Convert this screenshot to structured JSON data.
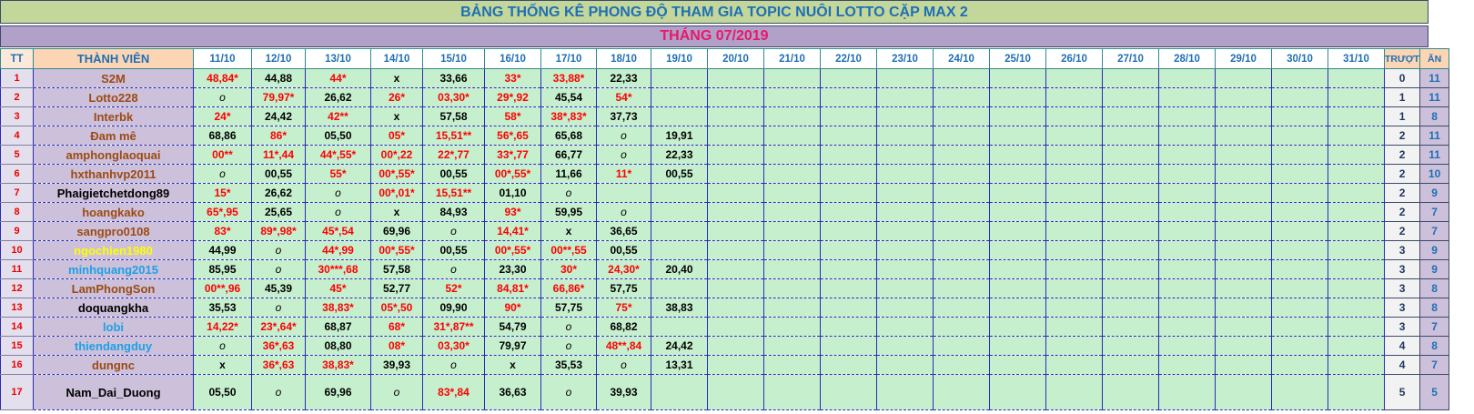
{
  "title": "BẢNG THỐNG KÊ PHONG ĐỘ  THAM GIA TOPIC NUÔI LOTTO CẶP MAX 2",
  "month": "THÁNG 07/2019",
  "headers": {
    "tt": "TT",
    "member": "THÀNH VIÊN",
    "miss": "TRƯỢT",
    "win": "ĂN",
    "dates": [
      "11/10",
      "12/10",
      "13/10",
      "14/10",
      "15/10",
      "16/10",
      "17/10",
      "18/10",
      "19/10",
      "20/10",
      "21/10",
      "22/10",
      "23/10",
      "24/10",
      "25/10",
      "26/10",
      "27/10",
      "28/10",
      "29/10",
      "30/10",
      "31/10"
    ]
  },
  "colors": {
    "brown": "#9c4a14",
    "black": "#000000",
    "yellow": "#ffff00",
    "blue": "#1ea0e6",
    "red": "#ff0000"
  },
  "rows": [
    {
      "tt": "1",
      "name": "S2M",
      "color": "brown",
      "cells": [
        "48,84*",
        "44,88",
        "44*",
        "x",
        "33,66",
        "33*",
        "33,88*",
        "22,33",
        ""
      ],
      "miss": "0",
      "win": "11"
    },
    {
      "tt": "2",
      "name": "Lotto228",
      "color": "brown",
      "cells": [
        "o",
        "79,97*",
        "26,62",
        "26*",
        "03,30*",
        "29*,92",
        "45,54",
        "54*",
        ""
      ],
      "miss": "1",
      "win": "11"
    },
    {
      "tt": "3",
      "name": "Interbk",
      "color": "brown",
      "cells": [
        "24*",
        "24,42",
        "42**",
        "x",
        "57,58",
        "58*",
        "38*,83*",
        "37,73",
        ""
      ],
      "miss": "1",
      "win": "8"
    },
    {
      "tt": "4",
      "name": "Đam mê",
      "color": "brown",
      "cells": [
        "68,86",
        "86*",
        "05,50",
        "05*",
        "15,51**",
        "56*,65",
        "65,68",
        "o",
        "19,91"
      ],
      "miss": "2",
      "win": "11"
    },
    {
      "tt": "5",
      "name": "amphonglaoquai",
      "color": "brown",
      "cells": [
        "00**",
        "11*,44",
        "44*,55*",
        "00*,22",
        "22*,77",
        "33*,77",
        "66,77",
        "o",
        "22,33"
      ],
      "miss": "2",
      "win": "11"
    },
    {
      "tt": "6",
      "name": "hxthanhvp2011",
      "color": "brown",
      "cells": [
        "o",
        "00,55",
        "55*",
        "00*,55*",
        "00,55",
        "00*,55*",
        "11,66",
        "11*",
        "00,55"
      ],
      "miss": "2",
      "win": "10"
    },
    {
      "tt": "7",
      "name": "Phaigietchetdong89",
      "color": "black",
      "cells": [
        "15*",
        "26,62",
        "o",
        "00*,01*",
        "15,51**",
        "01,10",
        "o",
        "",
        ""
      ],
      "miss": "2",
      "win": "9"
    },
    {
      "tt": "8",
      "name": "hoangkako",
      "color": "brown",
      "cells": [
        "65*,95",
        "25,65",
        "o",
        "x",
        "84,93",
        "93*",
        "59,95",
        "o",
        ""
      ],
      "miss": "2",
      "win": "7"
    },
    {
      "tt": "9",
      "name": "sangpro0108",
      "color": "brown",
      "cells": [
        "83*",
        "89*,98*",
        "45*,54",
        "69,96",
        "o",
        "14,41*",
        "x",
        "36,65",
        ""
      ],
      "miss": "2",
      "win": "7"
    },
    {
      "tt": "10",
      "name": "ngochien1980",
      "color": "yellow",
      "cells": [
        "44,99",
        "o",
        "44*,99",
        "00*,55*",
        "00,55",
        "00*,55*",
        "00**,55",
        "00,55",
        ""
      ],
      "miss": "3",
      "win": "9"
    },
    {
      "tt": "11",
      "name": "minhquang2015",
      "color": "blue",
      "cells": [
        "85,95",
        "o",
        "30***,68",
        "57,58",
        "o",
        "23,30",
        "30*",
        "24,30*",
        "20,40"
      ],
      "miss": "3",
      "win": "9"
    },
    {
      "tt": "12",
      "name": "LamPhongSon",
      "color": "brown",
      "cells": [
        "00**,96",
        "45,39",
        "45*",
        "52,77",
        "52*",
        "84,81*",
        "66,86*",
        "57,75",
        ""
      ],
      "miss": "3",
      "win": "8"
    },
    {
      "tt": "13",
      "name": "doquangkha",
      "color": "black",
      "cells": [
        "35,53",
        "o",
        "38,83*",
        "05*,50",
        "09,90",
        "90*",
        "57,75",
        "75*",
        "38,83"
      ],
      "miss": "3",
      "win": "8"
    },
    {
      "tt": "14",
      "name": "lobi",
      "color": "blue",
      "cells": [
        "14,22*",
        "23*,64*",
        "68,87",
        "68*",
        "31*,87**",
        "54,79",
        "o",
        "68,82",
        ""
      ],
      "miss": "3",
      "win": "7"
    },
    {
      "tt": "15",
      "name": "thiendangduy",
      "color": "blue",
      "cells": [
        "o",
        "36*,63",
        "08,80",
        "08*",
        "03,30*",
        "79,97",
        "o",
        "48**,84",
        "24,42"
      ],
      "miss": "4",
      "win": "8"
    },
    {
      "tt": "16",
      "name": "dungnc",
      "color": "brown",
      "cells": [
        "x",
        "36*,63",
        "38,83*",
        "39,93",
        "o",
        "x",
        "35,53",
        "o",
        "13,31"
      ],
      "miss": "4",
      "win": "7"
    },
    {
      "tt": "17",
      "name": "Nam_Dai_Duong",
      "color": "black",
      "cells": [
        "05,50",
        "o",
        "69,96",
        "o",
        "83*,84",
        "36,63",
        "o",
        "39,93",
        ""
      ],
      "miss": "5",
      "win": "5"
    }
  ]
}
